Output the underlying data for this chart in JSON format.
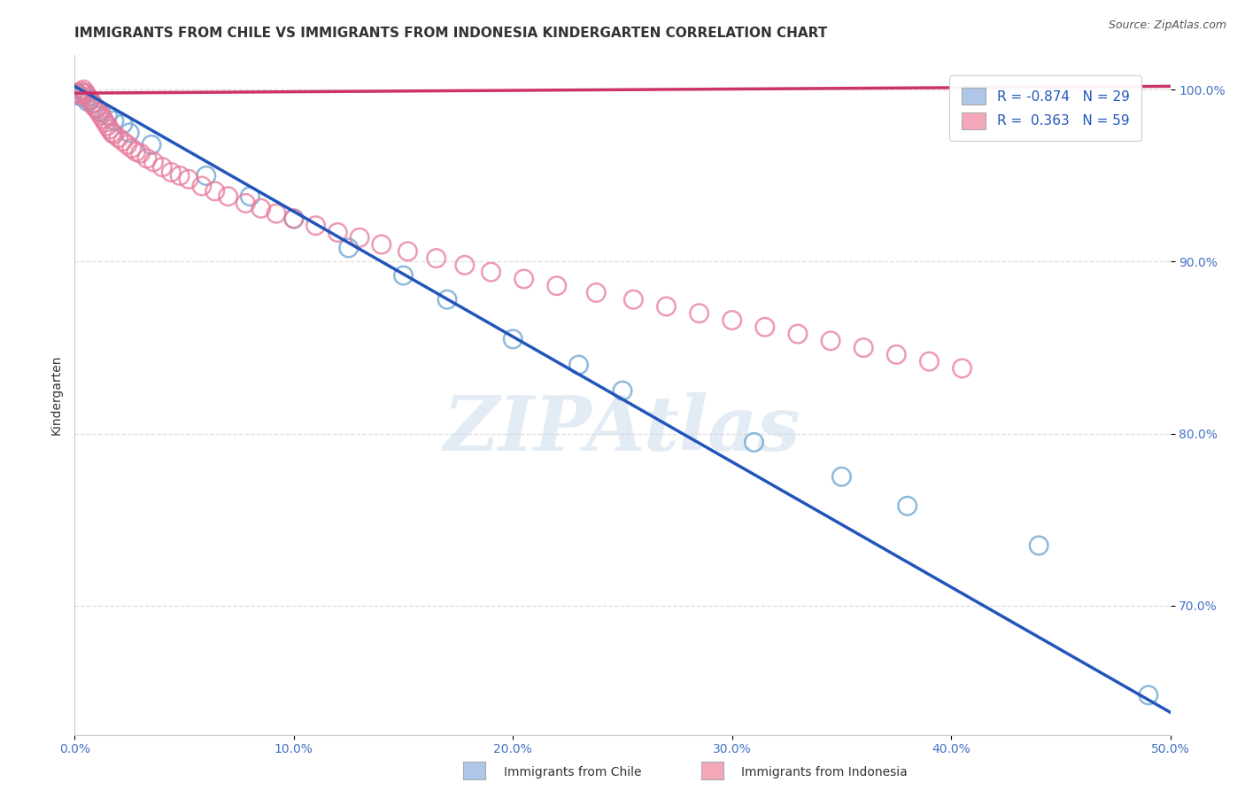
{
  "title": "IMMIGRANTS FROM CHILE VS IMMIGRANTS FROM INDONESIA KINDERGARTEN CORRELATION CHART",
  "source": "Source: ZipAtlas.com",
  "ylabel": "Kindergarten",
  "xlim": [
    0.0,
    0.5
  ],
  "ylim": [
    0.625,
    1.02
  ],
  "xtick_labels": [
    "0.0%",
    "10.0%",
    "20.0%",
    "30.0%",
    "40.0%",
    "50.0%"
  ],
  "xtick_values": [
    0.0,
    0.1,
    0.2,
    0.3,
    0.4,
    0.5
  ],
  "ytick_labels": [
    "100.0%",
    "90.0%",
    "80.0%",
    "70.0%"
  ],
  "ytick_values": [
    1.0,
    0.9,
    0.8,
    0.7
  ],
  "watermark": "ZIPAtlas",
  "legend_blue_label": "R = -0.874   N = 29",
  "legend_pink_label": "R =  0.363   N = 59",
  "legend_blue_color": "#aec6e8",
  "legend_pink_color": "#f4a7b9",
  "scatter_blue_color": "#7aaed6",
  "scatter_pink_color": "#e87a9a",
  "line_blue_color": "#2255bb",
  "line_pink_color": "#cc3366",
  "blue_x": [
    0.001,
    0.002,
    0.003,
    0.004,
    0.005,
    0.006,
    0.007,
    0.008,
    0.01,
    0.012,
    0.015,
    0.018,
    0.022,
    0.025,
    0.035,
    0.06,
    0.08,
    0.1,
    0.125,
    0.15,
    0.17,
    0.2,
    0.23,
    0.25,
    0.31,
    0.35,
    0.38,
    0.44,
    0.49
  ],
  "blue_y": [
    0.998,
    0.997,
    0.996,
    0.998,
    0.995,
    0.993,
    0.994,
    0.992,
    0.989,
    0.987,
    0.985,
    0.982,
    0.98,
    0.975,
    0.968,
    0.95,
    0.938,
    0.925,
    0.908,
    0.892,
    0.878,
    0.855,
    0.84,
    0.825,
    0.795,
    0.775,
    0.758,
    0.735,
    0.648
  ],
  "pink_x": [
    0.001,
    0.002,
    0.003,
    0.004,
    0.005,
    0.006,
    0.007,
    0.008,
    0.009,
    0.01,
    0.011,
    0.012,
    0.013,
    0.014,
    0.015,
    0.016,
    0.017,
    0.018,
    0.02,
    0.022,
    0.024,
    0.026,
    0.028,
    0.03,
    0.033,
    0.036,
    0.04,
    0.044,
    0.048,
    0.052,
    0.058,
    0.064,
    0.07,
    0.078,
    0.085,
    0.092,
    0.1,
    0.11,
    0.12,
    0.13,
    0.14,
    0.152,
    0.165,
    0.178,
    0.19,
    0.205,
    0.22,
    0.238,
    0.255,
    0.27,
    0.285,
    0.3,
    0.315,
    0.33,
    0.345,
    0.36,
    0.375,
    0.39,
    0.405
  ],
  "pink_y": [
    0.998,
    0.997,
    0.999,
    1.0,
    0.998,
    0.996,
    0.994,
    0.992,
    0.99,
    0.989,
    0.987,
    0.985,
    0.983,
    0.981,
    0.979,
    0.977,
    0.975,
    0.974,
    0.972,
    0.97,
    0.968,
    0.966,
    0.964,
    0.963,
    0.96,
    0.958,
    0.955,
    0.952,
    0.95,
    0.948,
    0.944,
    0.941,
    0.938,
    0.934,
    0.931,
    0.928,
    0.925,
    0.921,
    0.917,
    0.914,
    0.91,
    0.906,
    0.902,
    0.898,
    0.894,
    0.89,
    0.886,
    0.882,
    0.878,
    0.874,
    0.87,
    0.866,
    0.862,
    0.858,
    0.854,
    0.85,
    0.846,
    0.842,
    0.838
  ],
  "blue_line_x0": 0.0,
  "blue_line_y0": 1.002,
  "blue_line_x1": 0.5,
  "blue_line_y1": 0.638,
  "pink_line_x0": 0.0,
  "pink_line_y0": 0.998,
  "pink_line_x1": 0.5,
  "pink_line_y1": 1.002,
  "grid_color": "#dddddd",
  "bg_color": "#ffffff",
  "title_fontsize": 11,
  "axis_label_fontsize": 10,
  "tick_fontsize": 10,
  "legend_fontsize": 11
}
